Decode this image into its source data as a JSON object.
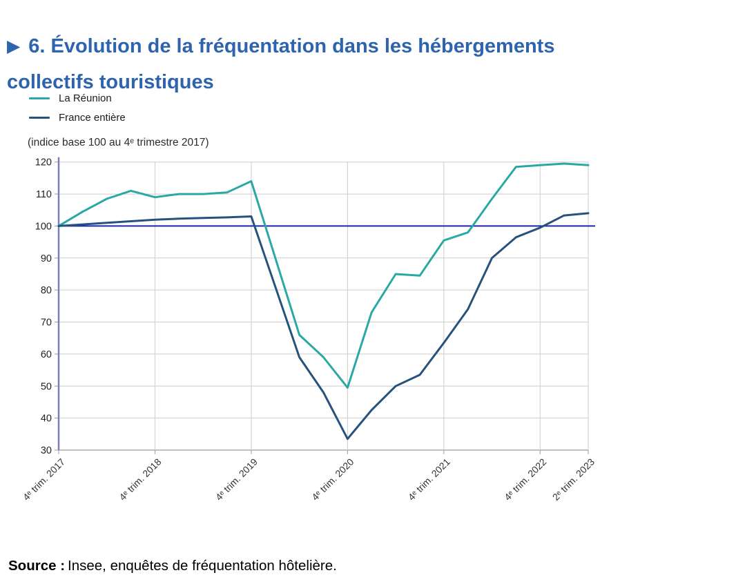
{
  "title": {
    "marker": "▶",
    "line1": "6. Évolution de la fréquentation dans les hébergements",
    "line2": "collectifs touristiques"
  },
  "axis_note": "(indice base 100 au 4ᵉ trimestre 2017)",
  "source": {
    "label": "Source :",
    "text": "Insee, enquêtes de fréquentation hôtelière."
  },
  "colors": {
    "title": "#2e63ae",
    "reunion_line": "#2aa9a4",
    "france_line": "#26527c",
    "reference_line": "#1e23ac",
    "y_axis": "#7b80b4",
    "grid": "#cdcdcd"
  },
  "chart_data": {
    "type": "line",
    "x": [
      "T4 2017",
      "T1 2018",
      "T2 2018",
      "T3 2018",
      "T4 2018",
      "T1 2019",
      "T2 2019",
      "T3 2019",
      "T4 2019",
      "T1 2020",
      "T2 2020",
      "T3 2020",
      "T4 2020",
      "T1 2021",
      "T2 2021",
      "T3 2021",
      "T4 2021",
      "T1 2022",
      "T2 2022",
      "T3 2022",
      "T4 2022",
      "T1 2023",
      "T2 2023"
    ],
    "series": [
      {
        "name": "La Réunion",
        "color": "#2aa9a4",
        "values": [
          100,
          104.5,
          108.5,
          111,
          109,
          110,
          110,
          110.5,
          114,
          90,
          66,
          59,
          49.5,
          73,
          85,
          84.5,
          95.5,
          98,
          108.5,
          118.5,
          119,
          119.5,
          119
        ]
      },
      {
        "name": "France entière",
        "color": "#26527c",
        "values": [
          100,
          100.5,
          101,
          101.5,
          102,
          102.3,
          102.5,
          102.7,
          103,
          81,
          59,
          48,
          33.5,
          42.5,
          50,
          53.5,
          63.5,
          74,
          90,
          96.5,
          99.5,
          103.3,
          104
        ]
      }
    ],
    "ylim": [
      30,
      120
    ],
    "ytick_step": 10,
    "xticks": [
      {
        "index": 0,
        "label": "4ᵉ trim. 2017"
      },
      {
        "index": 4,
        "label": "4ᵉ trim. 2018"
      },
      {
        "index": 8,
        "label": "4ᵉ trim. 2019"
      },
      {
        "index": 12,
        "label": "4ᵉ trim. 2020"
      },
      {
        "index": 16,
        "label": "4ᵉ trim. 2021"
      },
      {
        "index": 20,
        "label": "4ᵉ trim. 2022"
      },
      {
        "index": 22,
        "label": "2ᵉ trim. 2023"
      }
    ],
    "reference_line": {
      "value": 100,
      "color": "#1e23ac"
    },
    "grid": true,
    "legend_position": "top-left",
    "title": "6. Évolution de la fréquentation dans les hébergements collectifs touristiques",
    "ylabel_note": "(indice base 100 au 4ᵉ trimestre 2017)"
  }
}
